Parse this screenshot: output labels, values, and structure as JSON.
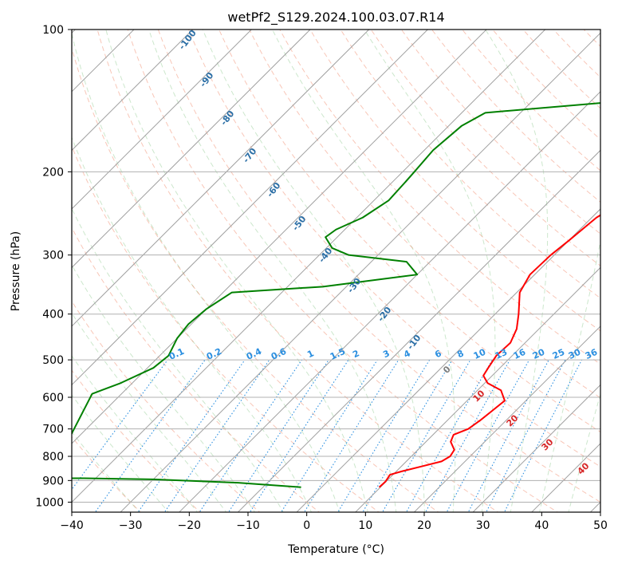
{
  "chart_data": {
    "type": "line",
    "title": "wetPf2_S129.2024.100.03.07.R14",
    "xlabel": "Temperature (°C)",
    "ylabel": "Pressure (hPa)",
    "xlim": [
      -40,
      50
    ],
    "ylim": [
      1050,
      100
    ],
    "y_scale": "log",
    "skew": true,
    "grid": true,
    "x_ticks": [
      -40,
      -30,
      -20,
      -10,
      0,
      10,
      20,
      30,
      40,
      50
    ],
    "y_ticks": [
      100,
      200,
      300,
      400,
      500,
      600,
      700,
      800,
      900,
      1000
    ],
    "dry_adiabat_labels": [
      -100,
      -90,
      -80,
      -70,
      -60,
      -50,
      -40,
      -30,
      -20,
      -10
    ],
    "mixing_ratio_labels": [
      "0.1",
      "0.2",
      "0.4",
      "0.6",
      "1",
      "1.5",
      "2",
      "3",
      "4",
      "6",
      "8",
      "10",
      "13",
      "16",
      "20",
      "25",
      "30",
      "36"
    ],
    "moist_adiabat_labels": [
      0,
      10,
      20,
      30,
      40
    ],
    "series": [
      {
        "color": "#ff0000",
        "points": [
          [
            9.8,
            930
          ],
          [
            9.9,
            905
          ],
          [
            9.5,
            875
          ],
          [
            11,
            860
          ],
          [
            13.5,
            840
          ],
          [
            16,
            820
          ],
          [
            16.6,
            800
          ],
          [
            16.2,
            775
          ],
          [
            14.2,
            745
          ],
          [
            13.5,
            720
          ],
          [
            15,
            700
          ],
          [
            15.6,
            670
          ],
          [
            16,
            640
          ],
          [
            16.4,
            610
          ],
          [
            14,
            580
          ],
          [
            10.5,
            560
          ],
          [
            8.5,
            540
          ],
          [
            8,
            520
          ],
          [
            7.3,
            490
          ],
          [
            7.5,
            460
          ],
          [
            6.2,
            430
          ],
          [
            4,
            400
          ],
          [
            0.5,
            360
          ],
          [
            -0.8,
            330
          ],
          [
            -0.6,
            300
          ],
          [
            0,
            280
          ],
          [
            0.8,
            250
          ],
          [
            3.5,
            220
          ],
          [
            8,
            200
          ],
          [
            13.5,
            175
          ],
          [
            18.8,
            150
          ],
          [
            22,
            135
          ],
          [
            24.8,
            125
          ],
          [
            28,
            115
          ],
          [
            31.5,
            100
          ]
        ]
      },
      {
        "color": "#008000",
        "points": [
          [
            -3.5,
            930
          ],
          [
            -15,
            910
          ],
          [
            -30,
            895
          ],
          [
            -42,
            890
          ],
          [
            -48,
            890
          ],
          [
            -55,
            590
          ],
          [
            -52,
            560
          ],
          [
            -49,
            520
          ],
          [
            -48.5,
            490
          ],
          [
            -50,
            450
          ],
          [
            -50.5,
            420
          ],
          [
            -50,
            390
          ],
          [
            -48.5,
            360
          ],
          [
            -34,
            350
          ],
          [
            -20,
            330
          ],
          [
            -24,
            310
          ],
          [
            -35,
            300
          ],
          [
            -39,
            290
          ],
          [
            -42,
            275
          ],
          [
            -41.5,
            265
          ],
          [
            -39,
            250
          ],
          [
            -37.5,
            230
          ],
          [
            -37.8,
            210
          ],
          [
            -38,
            200
          ],
          [
            -38.5,
            180
          ],
          [
            -37.8,
            160
          ],
          [
            -36,
            150
          ],
          [
            -10,
            140
          ],
          [
            -5,
            130
          ],
          [
            0,
            115
          ],
          [
            1.5,
            100
          ]
        ]
      }
    ]
  }
}
